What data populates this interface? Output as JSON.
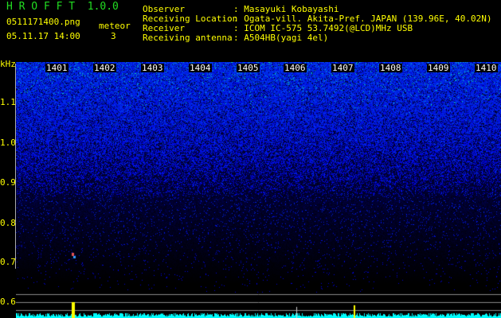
{
  "app": {
    "name": "H R O F F T",
    "version": "1.0.0"
  },
  "file": {
    "name": "0511171400.png",
    "datetime": "05.11.17 14:00"
  },
  "meteor": {
    "label": "meteor",
    "count": "3"
  },
  "info": [
    {
      "label": "Observer",
      "value": ": Masayuki Kobayashi"
    },
    {
      "label": "Receiving Location",
      "value": ": Ogata-vill. Akita-Pref. JAPAN (139.96E, 40.02N)"
    },
    {
      "label": "Receiver",
      "value": ": ICOM IC-575 53.7492(@LCD)MHz USB"
    },
    {
      "label": "Receiving antenna",
      "value": ": A504HB(yagi 4el)"
    }
  ],
  "axis": {
    "unit": "kHz",
    "y_ticks": [
      "1.1",
      "1.0",
      "0.9",
      "0.8",
      "0.7",
      "0.6"
    ],
    "time_ticks": [
      "1401",
      "1402",
      "1403",
      "1404",
      "1405",
      "1406",
      "1407",
      "1408",
      "1409",
      "1410"
    ]
  },
  "colors": {
    "text": "#ffff00",
    "title": "#22dd22",
    "histogram": "#00ffff",
    "meteor_bar": "#ffff00"
  }
}
